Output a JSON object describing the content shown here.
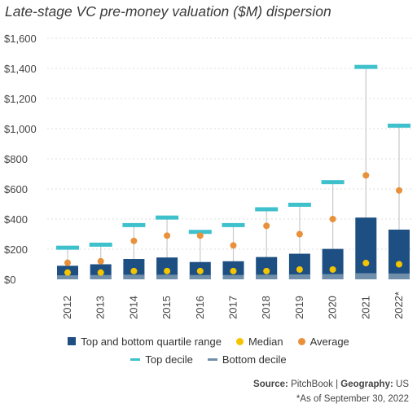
{
  "chart_data": {
    "type": "box",
    "title": "Late-stage VC pre-money valuation ($M) dispersion",
    "categories": [
      "2012",
      "2013",
      "2014",
      "2015",
      "2016",
      "2017",
      "2018",
      "2019",
      "2020",
      "2021",
      "2022*"
    ],
    "y_ticks": [
      "$0",
      "$200",
      "$400",
      "$600",
      "$800",
      "$1,000",
      "$1,200",
      "$1,400",
      "$1,600"
    ],
    "ylim": [
      0,
      1600
    ],
    "series": [
      {
        "name": "Top and bottom quartile range",
        "low": [
          16,
          18,
          20,
          20,
          18,
          18,
          20,
          22,
          24,
          30,
          28
        ],
        "high": [
          90,
          100,
          135,
          145,
          115,
          120,
          148,
          170,
          202,
          410,
          330
        ]
      },
      {
        "name": "Median",
        "values": [
          45,
          45,
          55,
          55,
          55,
          55,
          55,
          65,
          65,
          108,
          100
        ]
      },
      {
        "name": "Average",
        "values": [
          110,
          120,
          255,
          290,
          290,
          225,
          355,
          300,
          400,
          690,
          590
        ]
      },
      {
        "name": "Top decile",
        "values": [
          210,
          230,
          360,
          410,
          315,
          360,
          465,
          495,
          645,
          1410,
          1020
        ]
      },
      {
        "name": "Bottom decile",
        "values": [
          16,
          18,
          20,
          20,
          18,
          18,
          20,
          22,
          24,
          30,
          28
        ]
      }
    ],
    "colors": {
      "quartile": "#1d4f82",
      "median": "#f5c400",
      "average": "#e8913a",
      "top_decile": "#3fc1cc",
      "bottom_decile": "#6f8fab",
      "whisker": "#c9c9c9",
      "grid": "#dcdcdc"
    }
  },
  "legend": {
    "row1": [
      "Top and bottom quartile range",
      "Median",
      "Average"
    ],
    "row2": [
      "Top decile",
      "Bottom decile"
    ]
  },
  "footer": {
    "source_label": "Source:",
    "source_value": "PitchBook",
    "separator": "|",
    "geo_label": "Geography:",
    "geo_value": "US",
    "note": "*As of September 30, 2022"
  }
}
